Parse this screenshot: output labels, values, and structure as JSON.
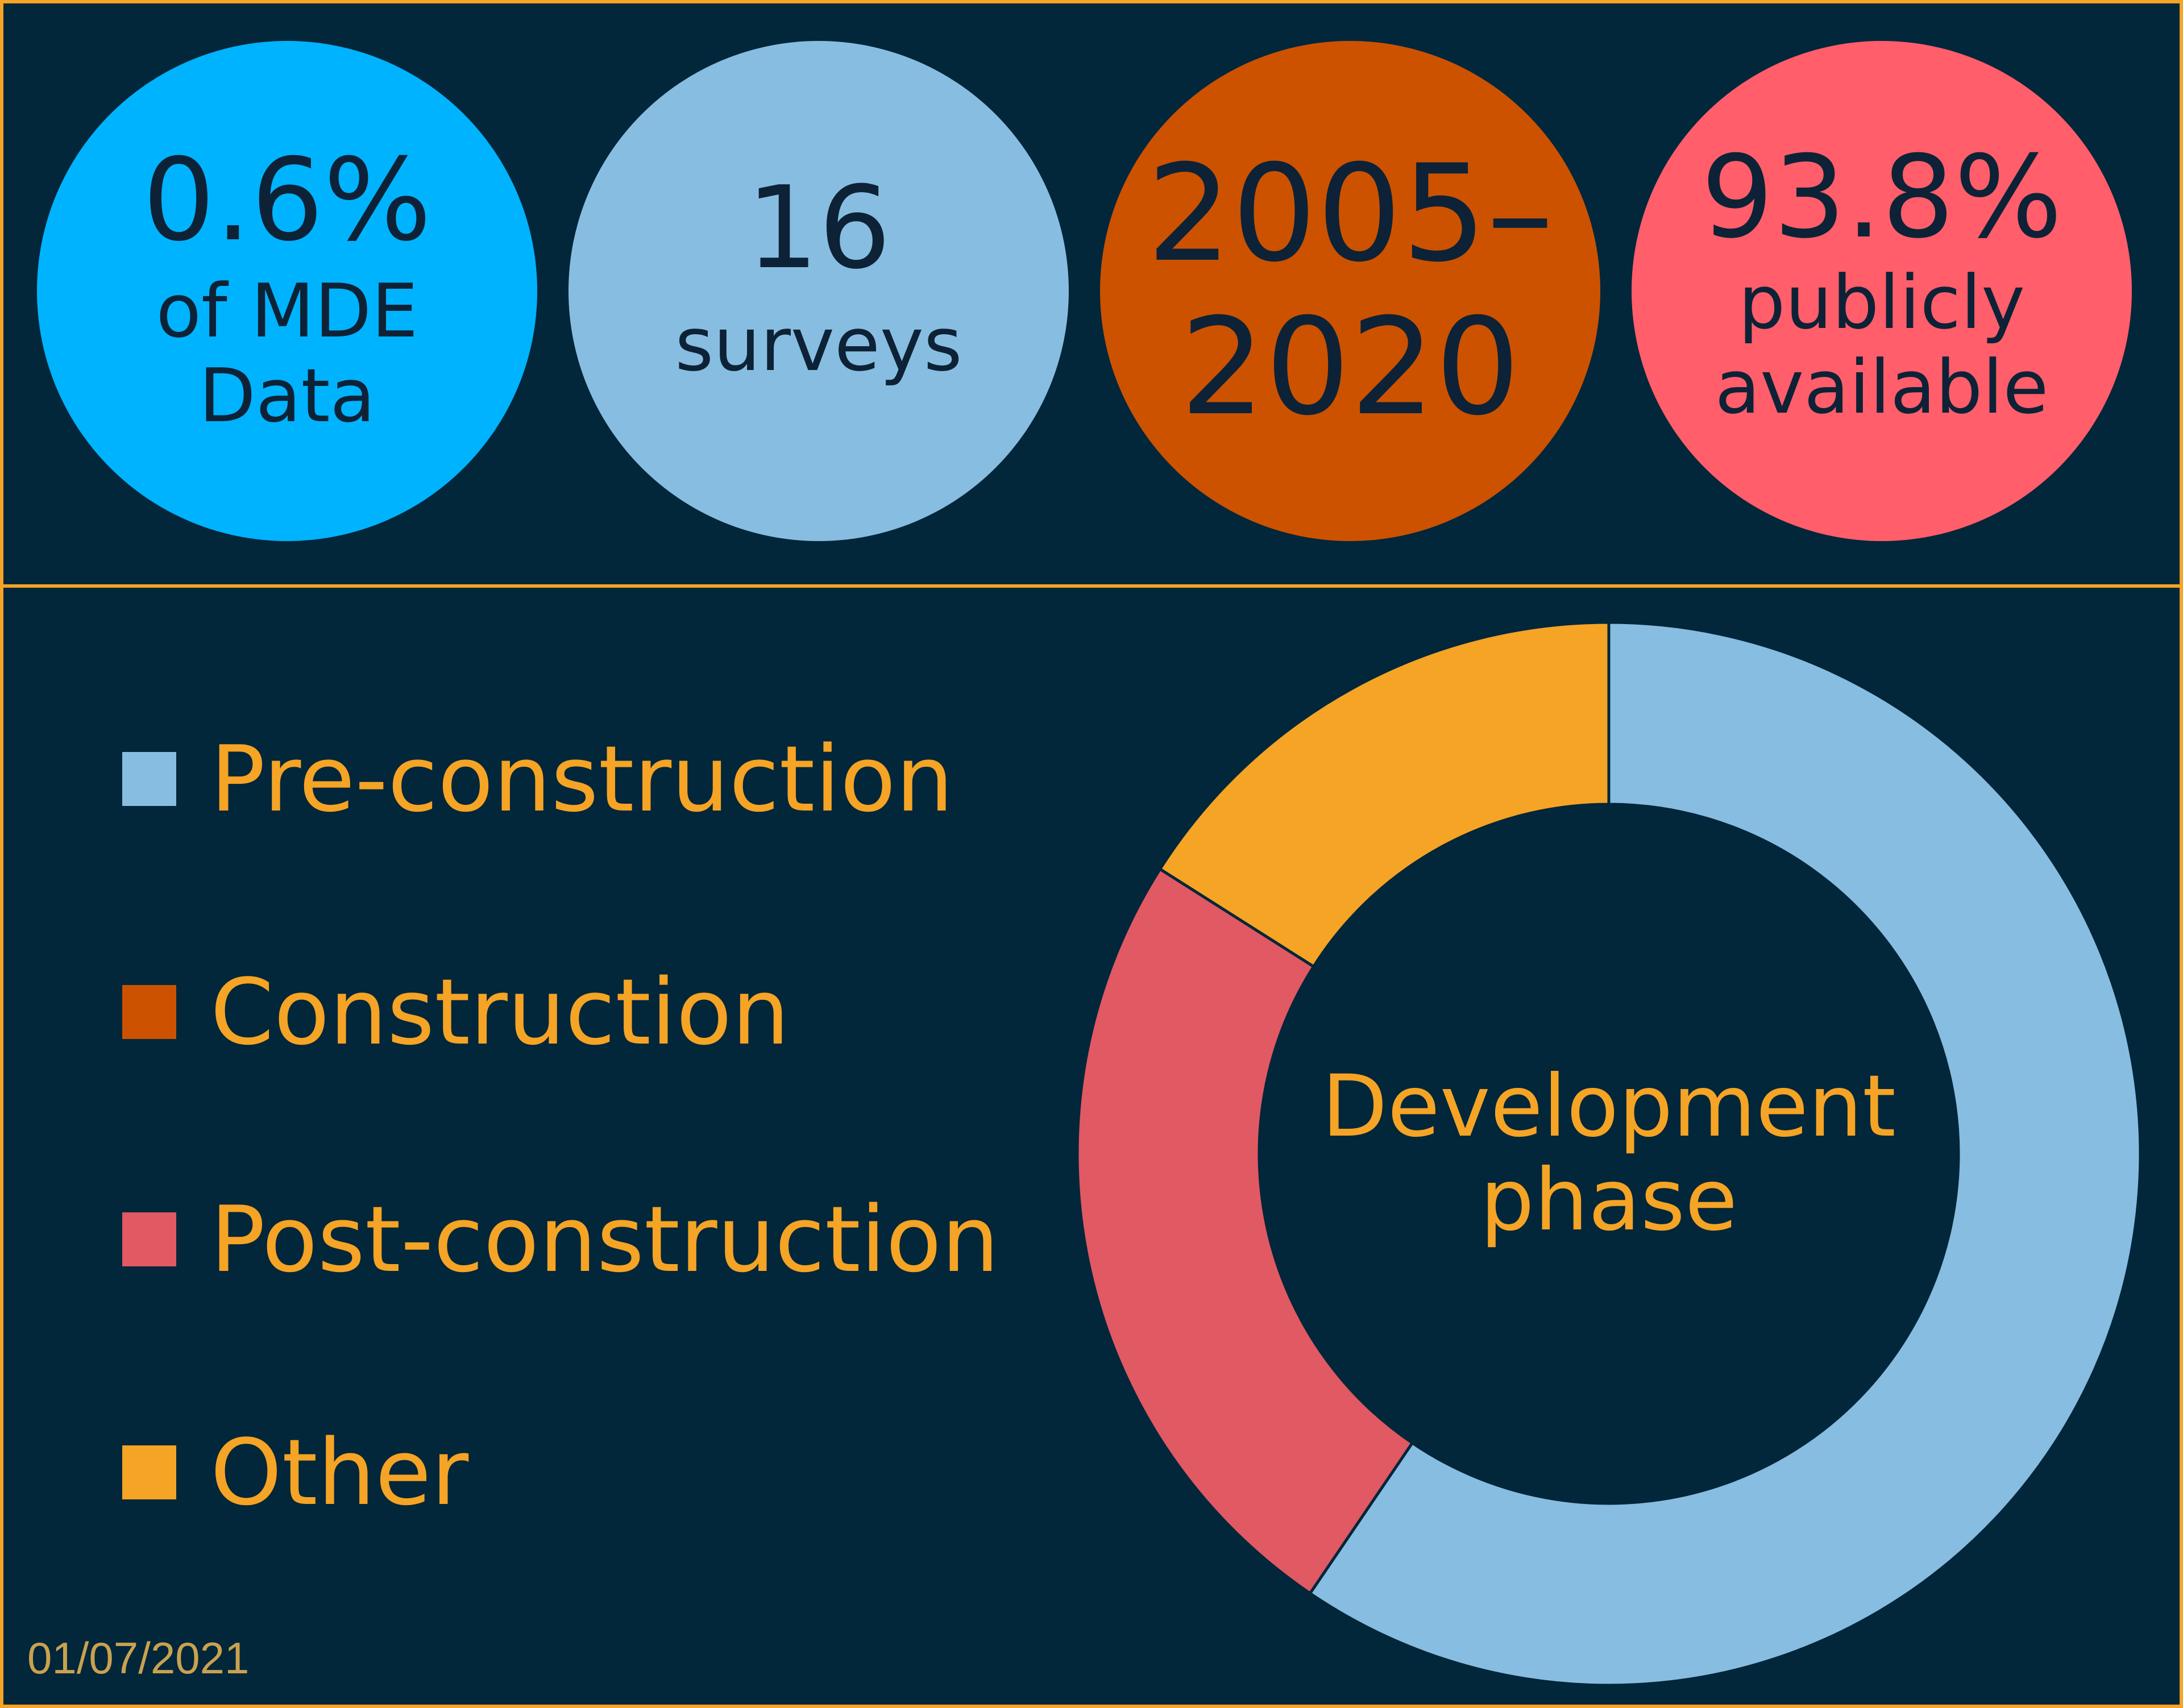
{
  "stats": [
    {
      "big": "0.6%",
      "line1": "of MDE",
      "line2": "Data",
      "color": "#00b3ff"
    },
    {
      "big": "16",
      "line1": "surveys",
      "line2": "",
      "color": "#87bde0"
    },
    {
      "big": "2005–\n2020",
      "line1": "",
      "line2": "",
      "color": "#cc5200"
    },
    {
      "big": "93.8%",
      "line1": "publicly",
      "line2": "available",
      "color": "#ff5e6a"
    }
  ],
  "chart_data": {
    "type": "pie",
    "style": "donut",
    "title": "",
    "center_label": [
      "Development",
      "phase"
    ],
    "categories": [
      "Pre-construction",
      "Construction",
      "Post-construction",
      "Other"
    ],
    "values": [
      59.5,
      0,
      24.5,
      16
    ],
    "unit": "%",
    "colors": [
      "#87bde0",
      "#cc5200",
      "#e05963",
      "#f5a425"
    ],
    "legend_position": "left"
  },
  "date": "01/07/2021"
}
